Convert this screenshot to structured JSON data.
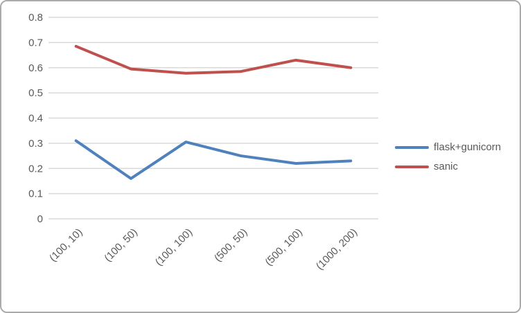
{
  "colors": {
    "background": "#ffffff",
    "frame_border": "#ababab",
    "gridline": "#d9d9d9",
    "axis_text": "#595959",
    "series_blue": "#4f81bd",
    "series_red": "#c0504d"
  },
  "chart_data": {
    "type": "line",
    "title": "",
    "xlabel": "",
    "ylabel": "",
    "categories": [
      "(100, 10)",
      "(100, 50)",
      "(100, 100)",
      "(500, 50)",
      "(500, 100)",
      "(1000, 200)"
    ],
    "series": [
      {
        "name": "flask+gunicorn",
        "color": "#4f81bd",
        "values": [
          0.31,
          0.16,
          0.305,
          0.25,
          0.22,
          0.23
        ]
      },
      {
        "name": "sanic",
        "color": "#c0504d",
        "values": [
          0.685,
          0.595,
          0.578,
          0.585,
          0.63,
          0.6
        ]
      }
    ],
    "ylim": [
      0,
      0.8
    ],
    "ytick_step": 0.1,
    "yticks": [
      "0",
      "0.1",
      "0.2",
      "0.3",
      "0.4",
      "0.5",
      "0.6",
      "0.7",
      "0.8"
    ],
    "grid": true,
    "legend_position": "right",
    "x_label_rotation_deg": -45
  }
}
